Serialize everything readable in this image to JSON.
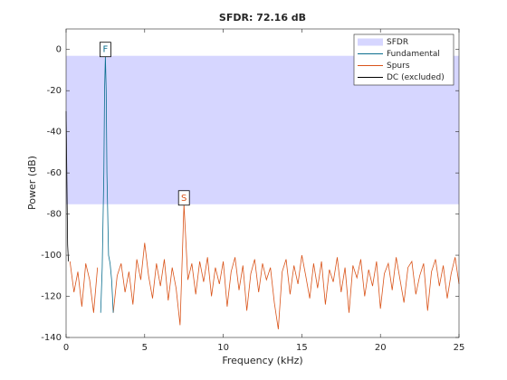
{
  "chart_data": {
    "type": "line",
    "title": "SFDR:  72.16 dB",
    "x_label": "Frequency (kHz)",
    "y_label": "Power (dB)",
    "xlim": [
      0,
      25
    ],
    "ylim": [
      -140,
      10
    ],
    "xticks": [
      0,
      5,
      10,
      15,
      20,
      25
    ],
    "yticks": [
      -140,
      -120,
      -100,
      -80,
      -60,
      -40,
      -20,
      0
    ],
    "legend": "upper right",
    "band": {
      "name": "SFDR",
      "color": "#d6d6ff",
      "values": [
        -75.23,
        -3.07
      ]
    },
    "series": [
      {
        "name": "Fundamental",
        "color": "#0b6e8e",
        "x": [
          2.2,
          2.3,
          2.4,
          2.45,
          2.5,
          2.55,
          2.6,
          2.7,
          2.8,
          2.9,
          3.0
        ],
        "values": [
          -128,
          -106,
          -60,
          -20,
          -3.07,
          -20,
          -60,
          -100,
          -104,
          -112,
          -128
        ]
      },
      {
        "name": "Spurs",
        "color": "#d95319",
        "x": [
          0.25,
          0.5,
          0.75,
          1.0,
          1.25,
          1.5,
          1.75,
          2.0,
          2.25,
          2.5,
          2.75,
          3.0,
          3.25,
          3.5,
          3.75,
          4.0,
          4.25,
          4.5,
          4.75,
          5.0,
          5.25,
          5.5,
          5.75,
          6.0,
          6.25,
          6.5,
          6.75,
          7.0,
          7.25,
          7.5,
          7.75,
          8.0,
          8.25,
          8.5,
          8.75,
          9.0,
          9.25,
          9.5,
          9.75,
          10.0,
          10.25,
          10.5,
          10.75,
          11.0,
          11.25,
          11.5,
          11.75,
          12.0,
          12.25,
          12.5,
          12.75,
          13.0,
          13.25,
          13.5,
          13.75,
          14.0,
          14.25,
          14.5,
          14.75,
          15.0,
          15.25,
          15.5,
          15.75,
          16.0,
          16.25,
          16.5,
          16.75,
          17.0,
          17.25,
          17.5,
          17.75,
          18.0,
          18.25,
          18.5,
          18.75,
          19.0,
          19.25,
          19.5,
          19.75,
          20.0,
          20.25,
          20.5,
          20.75,
          21.0,
          21.25,
          21.5,
          21.75,
          22.0,
          22.25,
          22.5,
          22.75,
          23.0,
          23.25,
          23.5,
          23.75,
          24.0,
          24.25,
          24.5,
          24.75,
          25.0
        ],
        "values": [
          -103,
          -118,
          -108,
          -125,
          -104,
          -112,
          -128,
          -106,
          null,
          null,
          null,
          -128,
          -110,
          -104,
          -118,
          -108,
          -124,
          -102,
          -112,
          -94,
          -110,
          -121,
          -104,
          -115,
          -102,
          -122,
          -106,
          -116,
          -134,
          -75.23,
          -112,
          -104,
          -119,
          -103,
          -113,
          -101,
          -120,
          -106,
          -114,
          -103,
          -125,
          -108,
          -101,
          -117,
          -105,
          -127,
          -109,
          -102,
          -118,
          -104,
          -112,
          -106,
          -123,
          -136,
          -108,
          -102,
          -119,
          -105,
          -114,
          -100,
          -110,
          -121,
          -104,
          -116,
          -103,
          -124,
          -107,
          -113,
          -101,
          -118,
          -106,
          -128,
          -105,
          -111,
          -102,
          -120,
          -107,
          -115,
          -103,
          -126,
          -109,
          -104,
          -117,
          -101,
          -112,
          -123,
          -106,
          -103,
          -119,
          -110,
          -104,
          -127,
          -108,
          -102,
          -115,
          -105,
          -121,
          -109,
          -101,
          -114
        ]
      },
      {
        "name": "DC (excluded)",
        "color": "#000000",
        "x": [
          0,
          0.05,
          0.1,
          0.15
        ],
        "values": [
          -30,
          -65,
          -95,
          -103
        ]
      }
    ],
    "annotations": [
      {
        "text": "F",
        "x": 2.5,
        "y": -3.07,
        "color": "#0b6e8e"
      },
      {
        "text": "S",
        "x": 7.5,
        "y": -75.23,
        "color": "#d95319"
      }
    ]
  }
}
